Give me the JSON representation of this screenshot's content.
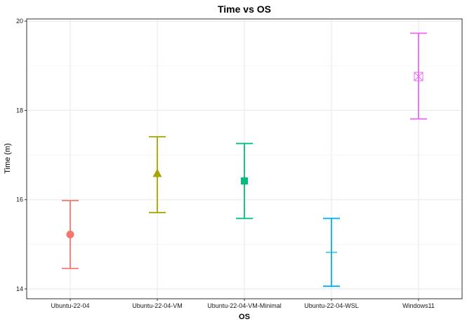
{
  "chart_data": {
    "type": "errorbar",
    "title": "Time vs OS",
    "xlabel": "OS",
    "ylabel": "Time (m)",
    "ylim": [
      13.78,
      20.05
    ],
    "yticks": [
      14,
      16,
      18,
      20
    ],
    "grid": true,
    "legend": "none",
    "categories": [
      "Ubuntu-22-04",
      "Ubuntu-22-04-VM",
      "Ubuntu-22-04-VM-Minimal",
      "Ubuntu-22-04-WSL",
      "Windows11"
    ],
    "series": [
      {
        "category": "Ubuntu-22-04",
        "mean": 15.22,
        "lower": 14.46,
        "upper": 15.98,
        "shape": "circle",
        "color": "#F8766D"
      },
      {
        "category": "Ubuntu-22-04-VM",
        "mean": 16.58,
        "lower": 15.71,
        "upper": 17.41,
        "shape": "triangle",
        "color": "#A3A500"
      },
      {
        "category": "Ubuntu-22-04-VM-Minimal",
        "mean": 16.42,
        "lower": 15.58,
        "upper": 17.26,
        "shape": "square",
        "color": "#00BF7D"
      },
      {
        "category": "Ubuntu-22-04-WSL",
        "mean": 14.82,
        "lower": 14.06,
        "upper": 15.58,
        "shape": "plus",
        "color": "#00B0F6"
      },
      {
        "category": "Windows11",
        "mean": 18.76,
        "lower": 17.81,
        "upper": 19.73,
        "shape": "square-cross",
        "color": "#E76BF3"
      }
    ]
  }
}
